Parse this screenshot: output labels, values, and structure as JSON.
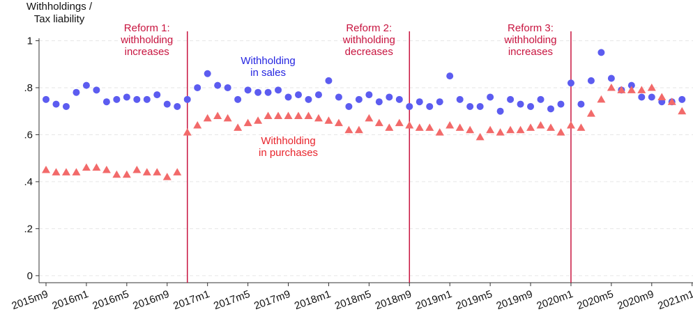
{
  "chart_data": {
    "type": "scatter",
    "y_label": [
      "Withholdings /",
      "Tax liability"
    ],
    "categories": [
      "2015m9",
      null,
      null,
      null,
      "2016m1",
      null,
      null,
      null,
      "2016m5",
      null,
      null,
      null,
      "2016m9",
      null,
      null,
      null,
      "2017m1",
      null,
      null,
      null,
      "2017m5",
      null,
      null,
      null,
      "2017m9",
      null,
      null,
      null,
      "2018m1",
      null,
      null,
      null,
      "2018m5",
      null,
      null,
      null,
      "2018m9",
      null,
      null,
      null,
      "2019m1",
      null,
      null,
      null,
      "2019m5",
      null,
      null,
      null,
      "2019m9",
      null,
      null,
      null,
      "2020m1",
      null,
      null,
      null,
      "2020m5",
      null,
      null,
      null,
      "2020m9",
      null,
      null,
      null,
      "2021m1"
    ],
    "series": [
      {
        "marker": "circle",
        "color": "#5c5cf0",
        "values": [
          0.75,
          0.73,
          0.72,
          0.78,
          0.81,
          0.79,
          0.74,
          0.75,
          0.76,
          0.75,
          0.75,
          0.77,
          0.73,
          0.72,
          0.75,
          0.8,
          0.86,
          0.81,
          0.8,
          0.75,
          0.79,
          0.78,
          0.78,
          0.79,
          0.76,
          0.77,
          0.75,
          0.77,
          0.83,
          0.76,
          0.72,
          0.75,
          0.77,
          0.74,
          0.76,
          0.75,
          0.72,
          0.74,
          0.72,
          0.74,
          0.85,
          0.75,
          0.72,
          0.72,
          0.76,
          0.7,
          0.75,
          0.73,
          0.72,
          0.75,
          0.71,
          0.73,
          0.82,
          0.73,
          0.83,
          0.95,
          0.84,
          0.79,
          0.81,
          0.76,
          0.76,
          0.74,
          0.74,
          0.75,
          null
        ]
      },
      {
        "marker": "triangle",
        "color": "#f26a6a",
        "values": [
          0.45,
          0.44,
          0.44,
          0.44,
          0.46,
          0.46,
          0.45,
          0.43,
          0.43,
          0.45,
          0.44,
          0.44,
          0.42,
          0.44,
          0.61,
          0.64,
          0.67,
          0.68,
          0.67,
          0.63,
          0.65,
          0.66,
          0.68,
          0.68,
          0.68,
          0.68,
          0.68,
          0.67,
          0.66,
          0.65,
          0.62,
          0.62,
          0.67,
          0.65,
          0.63,
          0.65,
          0.64,
          0.63,
          0.63,
          0.61,
          0.64,
          0.63,
          0.62,
          0.59,
          0.62,
          0.61,
          0.62,
          0.62,
          0.63,
          0.64,
          0.63,
          0.61,
          0.64,
          0.63,
          0.69,
          0.75,
          0.8,
          0.79,
          0.79,
          0.79,
          0.8,
          0.76,
          0.74,
          0.7,
          null
        ]
      }
    ],
    "annotations": [
      {
        "lines": [
          "Withholding",
          "in sales"
        ],
        "color": "#2424e0",
        "index": 22,
        "value": 0.9
      },
      {
        "lines": [
          "Withholding",
          "in purchases"
        ],
        "color": "#e8242c",
        "index": 24,
        "value": 0.56
      }
    ],
    "reforms": [
      {
        "index": 14,
        "lines": [
          "Reform 1:",
          "withholding",
          "increases"
        ]
      },
      {
        "index": 36,
        "lines": [
          "Reform 2:",
          "withholding",
          "decreases"
        ]
      },
      {
        "index": 52,
        "lines": [
          "Reform 3:",
          "withholding",
          "increases"
        ]
      }
    ],
    "reform_color": "#c8143f",
    "ylim": [
      -0.03,
      1.04
    ],
    "yticks": [
      0,
      {
        "value": 0.2,
        "label": ".2"
      },
      {
        "value": 0.4,
        "label": ".4"
      },
      {
        "value": 0.6,
        "label": ".6"
      },
      {
        "value": 0.8,
        "label": ".8"
      },
      1
    ],
    "grid": true
  }
}
